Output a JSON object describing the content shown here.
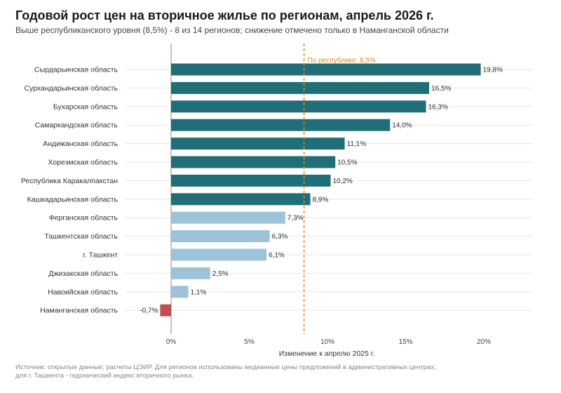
{
  "header": {
    "title": "Годовой рост цен на вторичное жилье по регионам, апрель 2026 г.",
    "subtitle": "Выше республиканского уровня (8,5%) - 8 из 14 регионов; снижение отмечено только в Наманганской области"
  },
  "footer": {
    "source_line1": "Источник: открытые данные; расчеты ЦЭИР. Для регионов использованы медианные цены предложений в административных центрах;",
    "source_line2": "для г. Ташкента - гедонический индекс вторичного рынка."
  },
  "chart_data": {
    "type": "bar",
    "orientation": "horizontal",
    "xlabel": "Изменение к апрелю 2025 г.",
    "xlim": [
      -3,
      23
    ],
    "xticks": [
      0,
      5,
      10,
      15,
      20
    ],
    "xtick_labels": [
      "0%",
      "5%",
      "10%",
      "15%",
      "20%"
    ],
    "grid": "horizontal lines at each category",
    "categories": [
      "Сырдарьинская область",
      "Сурхандарьинская область",
      "Бухарская область",
      "Самаркандская область",
      "Андижанская область",
      "Хорезмская область",
      "Республика Каракалпакстан",
      "Кашкадарьинская область",
      "Ферганская область",
      "Ташкентская область",
      "г. Ташкент",
      "Джизакская область",
      "Навоийская область",
      "Наманганская область"
    ],
    "values": [
      19.8,
      16.5,
      16.3,
      14.0,
      11.1,
      10.5,
      10.2,
      8.9,
      7.3,
      6.3,
      6.1,
      2.5,
      1.1,
      -0.7
    ],
    "value_labels": [
      "19,8%",
      "16,5%",
      "16,3%",
      "14,0%",
      "11,1%",
      "10,5%",
      "10,2%",
      "8,9%",
      "7,3%",
      "6,3%",
      "6,1%",
      "2,5%",
      "1,1%",
      "-0,7%"
    ],
    "reference_line": {
      "value": 8.5,
      "label": "По республике: 8,5%"
    },
    "colors": {
      "above": "#1f6e78",
      "below": "#9dc3d8",
      "negative": "#c0504d",
      "reference": "#e08a1e",
      "zero_axis": "#888888",
      "grid": "#e6e6e6"
    }
  }
}
